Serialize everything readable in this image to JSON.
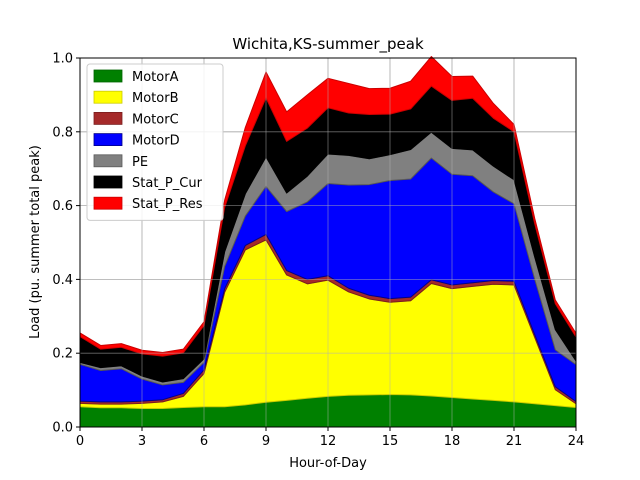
{
  "chart_data": {
    "type": "area",
    "stacked": true,
    "title": "Wichita,KS-summer_peak",
    "xlabel": "Hour-of-Day",
    "ylabel": "Load (pu. summer total peak)",
    "xlim": [
      0,
      24
    ],
    "ylim": [
      0,
      1.0
    ],
    "xticks": [
      "0",
      "3",
      "6",
      "9",
      "12",
      "15",
      "18",
      "21",
      "24"
    ],
    "yticks": [
      "0.0",
      "0.2",
      "0.4",
      "0.6",
      "0.8",
      "1.0"
    ],
    "grid": true,
    "legend_position": "upper-left",
    "x": [
      0,
      1,
      2,
      3,
      4,
      5,
      6,
      7,
      8,
      9,
      10,
      11,
      12,
      13,
      14,
      15,
      16,
      17,
      18,
      19,
      20,
      21,
      22,
      23,
      24
    ],
    "series": [
      {
        "name": "MotorA",
        "color": "#008000",
        "edge": "#006400",
        "values": [
          0.055,
          0.052,
          0.052,
          0.05,
          0.05,
          0.053,
          0.055,
          0.055,
          0.06,
          0.067,
          0.072,
          0.078,
          0.083,
          0.086,
          0.087,
          0.088,
          0.087,
          0.084,
          0.08,
          0.076,
          0.072,
          0.068,
          0.063,
          0.058,
          0.053
        ]
      },
      {
        "name": "MotorB",
        "color": "#ffff00",
        "edge": "#cccc00",
        "values": [
          0.009,
          0.01,
          0.01,
          0.014,
          0.018,
          0.03,
          0.09,
          0.31,
          0.42,
          0.44,
          0.34,
          0.31,
          0.315,
          0.28,
          0.26,
          0.25,
          0.255,
          0.305,
          0.295,
          0.305,
          0.315,
          0.317,
          0.18,
          0.043,
          0.01
        ]
      },
      {
        "name": "MotorC",
        "color": "#a52a2a",
        "edge": "#7a1e1e",
        "values": [
          0.006,
          0.006,
          0.006,
          0.006,
          0.006,
          0.008,
          0.01,
          0.01,
          0.012,
          0.015,
          0.012,
          0.012,
          0.012,
          0.01,
          0.01,
          0.01,
          0.01,
          0.01,
          0.01,
          0.01,
          0.01,
          0.01,
          0.008,
          0.008,
          0.006
        ]
      },
      {
        "name": "MotorD",
        "color": "#0000ff",
        "edge": "#00008b",
        "values": [
          0.1,
          0.085,
          0.09,
          0.06,
          0.04,
          0.03,
          0.02,
          0.06,
          0.08,
          0.13,
          0.16,
          0.21,
          0.25,
          0.28,
          0.3,
          0.32,
          0.32,
          0.33,
          0.3,
          0.29,
          0.24,
          0.21,
          0.15,
          0.1,
          0.1
        ]
      },
      {
        "name": "PE",
        "color": "#808080",
        "edge": "#5a5a5a",
        "values": [
          0.005,
          0.008,
          0.008,
          0.008,
          0.008,
          0.01,
          0.01,
          0.04,
          0.06,
          0.08,
          0.05,
          0.07,
          0.08,
          0.08,
          0.07,
          0.07,
          0.08,
          0.07,
          0.07,
          0.07,
          0.07,
          0.065,
          0.06,
          0.055,
          0.01
        ]
      },
      {
        "name": "Stat_P_Cur",
        "color": "#000000",
        "edge": "#000000",
        "values": [
          0.07,
          0.05,
          0.05,
          0.06,
          0.07,
          0.07,
          0.09,
          0.12,
          0.13,
          0.16,
          0.14,
          0.13,
          0.125,
          0.115,
          0.12,
          0.11,
          0.11,
          0.125,
          0.13,
          0.14,
          0.13,
          0.13,
          0.09,
          0.07,
          0.065
        ]
      },
      {
        "name": "Stat_P_Res",
        "color": "#ff0000",
        "edge": "#cc0000",
        "values": [
          0.01,
          0.01,
          0.01,
          0.01,
          0.01,
          0.01,
          0.01,
          0.02,
          0.05,
          0.07,
          0.08,
          0.09,
          0.08,
          0.08,
          0.07,
          0.07,
          0.075,
          0.08,
          0.065,
          0.06,
          0.04,
          0.02,
          0.015,
          0.01,
          0.01
        ]
      }
    ]
  }
}
